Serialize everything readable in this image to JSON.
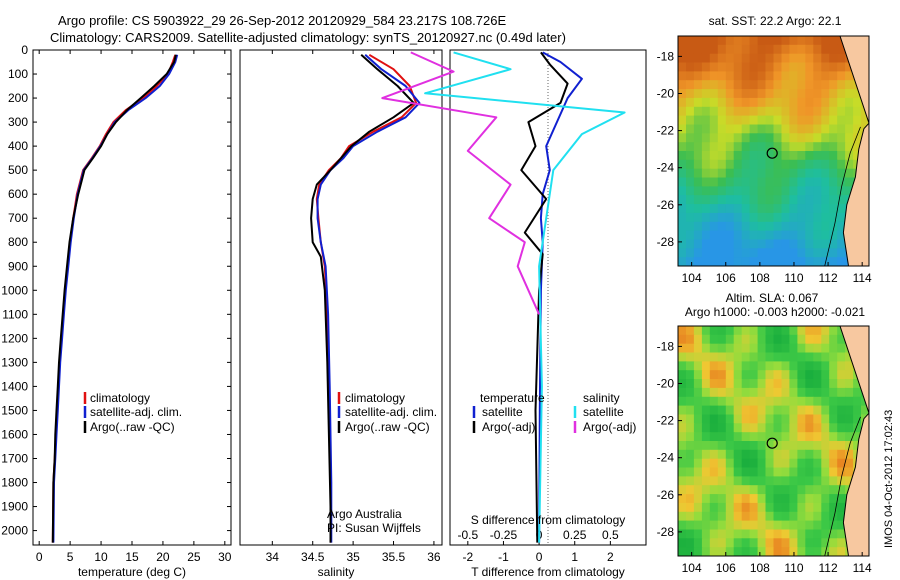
{
  "header": {
    "line1": "Argo profile: CS 5903922_29 26-Sep-2012 20120929_584 23.217S 108.726E",
    "line2": "Climatology: CARS2009. Satellite-adjusted climatology: synTS_20120927.nc (0.49d later)"
  },
  "colors": {
    "climatology": "#e01010",
    "satellite": "#1020d0",
    "argo": "#000000",
    "sal_satellite": "#20e0f0",
    "sal_argo": "#e030e0"
  },
  "chart_data": [
    {
      "type": "line",
      "id": "temperature",
      "xlabel": "temperature (deg C)",
      "xlim": [
        -1,
        31
      ],
      "xticks": [
        0,
        5,
        10,
        15,
        20,
        25,
        30
      ],
      "ylim": [
        2060,
        0
      ],
      "yticks": [
        0,
        100,
        200,
        300,
        400,
        500,
        600,
        700,
        800,
        900,
        1000,
        1100,
        1200,
        1300,
        1400,
        1500,
        1600,
        1700,
        1800,
        1900,
        2000
      ],
      "legend": [
        "climatology",
        "satellite-adj. clim.",
        "Argo(..raw -QC)"
      ],
      "series": [
        {
          "name": "climatology",
          "color_key": "climatology",
          "x": [
            22.0,
            21.6,
            20.8,
            19.0,
            16.8,
            14.0,
            12.0,
            10.8,
            9.8,
            8.5,
            7.1,
            6.6,
            6.1,
            5.8,
            5.5,
            5.0,
            4.6,
            4.2,
            3.9,
            3.6,
            3.3,
            3.1,
            2.9,
            2.7,
            2.5,
            2.3,
            2.2
          ],
          "y": [
            20,
            50,
            100,
            150,
            200,
            250,
            300,
            350,
            400,
            450,
            500,
            550,
            600,
            650,
            700,
            800,
            900,
            1000,
            1100,
            1200,
            1300,
            1400,
            1500,
            1600,
            1700,
            1800,
            2050
          ]
        },
        {
          "name": "satellite-adj. clim.",
          "color_key": "satellite",
          "x": [
            22.3,
            22.0,
            21.0,
            19.5,
            17.2,
            14.4,
            12.2,
            11.0,
            9.9,
            8.6,
            7.2,
            6.7,
            6.2,
            5.9,
            5.6,
            5.1,
            4.7,
            4.3,
            4.0,
            3.7,
            3.4,
            3.2,
            3.0,
            2.8,
            2.6,
            2.4,
            2.3
          ],
          "y": [
            20,
            50,
            100,
            150,
            200,
            250,
            300,
            350,
            400,
            450,
            500,
            550,
            600,
            650,
            700,
            800,
            900,
            1000,
            1100,
            1200,
            1300,
            1400,
            1500,
            1600,
            1700,
            1800,
            2050
          ]
        },
        {
          "name": "Argo(..raw -QC)",
          "color_key": "argo",
          "x": [
            22.1,
            21.8,
            20.6,
            18.6,
            16.4,
            14.2,
            12.4,
            11.0,
            10.0,
            8.7,
            7.3,
            6.8,
            6.3,
            5.9,
            5.5,
            4.9,
            4.5,
            4.1,
            3.8,
            3.5,
            3.2,
            3.0,
            2.8,
            2.6,
            2.5,
            2.3,
            2.2
          ],
          "y": [
            20,
            50,
            100,
            150,
            200,
            250,
            300,
            350,
            400,
            450,
            500,
            550,
            600,
            650,
            700,
            800,
            900,
            1000,
            1100,
            1200,
            1300,
            1400,
            1500,
            1600,
            1700,
            1800,
            2050
          ]
        }
      ]
    },
    {
      "type": "line",
      "id": "salinity",
      "xlabel": "salinity",
      "xlim": [
        33.6,
        36.1
      ],
      "xticks": [
        34,
        34.5,
        35,
        35.5,
        36
      ],
      "ylim": [
        2060,
        0
      ],
      "legend": [
        "climatology",
        "satellite-adj. clim.",
        "Argo(..raw -QC)"
      ],
      "annotation": [
        "Argo Australia",
        "PI: Susan Wijffels"
      ],
      "series": [
        {
          "name": "climatology",
          "color_key": "climatology",
          "x": [
            35.2,
            35.5,
            35.7,
            35.78,
            35.6,
            35.25,
            34.95,
            34.85,
            34.7,
            34.58,
            34.55,
            34.57,
            34.6,
            34.65,
            34.68,
            34.7,
            34.72,
            34.72
          ],
          "y": [
            20,
            80,
            150,
            220,
            280,
            340,
            400,
            450,
            500,
            560,
            620,
            700,
            800,
            900,
            1100,
            1400,
            1800,
            2050
          ]
        },
        {
          "name": "satellite-adj. clim.",
          "color_key": "satellite",
          "x": [
            35.15,
            35.35,
            35.65,
            35.82,
            35.65,
            35.3,
            35.0,
            34.88,
            34.72,
            34.6,
            34.56,
            34.56,
            34.6,
            34.66,
            34.69,
            34.71,
            34.73,
            34.73
          ],
          "y": [
            20,
            80,
            150,
            220,
            280,
            340,
            400,
            450,
            500,
            560,
            620,
            700,
            800,
            900,
            1100,
            1400,
            1800,
            2050
          ]
        },
        {
          "name": "Argo(..raw -QC)",
          "color_key": "argo",
          "x": [
            35.1,
            35.3,
            35.55,
            35.75,
            35.5,
            35.2,
            34.98,
            34.85,
            34.72,
            34.55,
            34.5,
            34.48,
            34.5,
            34.6,
            34.65,
            34.68,
            34.7,
            34.72,
            34.72
          ],
          "y": [
            20,
            80,
            150,
            220,
            280,
            340,
            400,
            450,
            500,
            560,
            620,
            700,
            800,
            860,
            1000,
            1300,
            1600,
            1900,
            2050
          ]
        }
      ]
    },
    {
      "type": "line",
      "id": "differences",
      "xlabel": "T difference from climatology",
      "xlabel_top": "S difference from climatology",
      "xlim": [
        -2.5,
        3
      ],
      "xticks": [
        -2,
        -1,
        0,
        1,
        2
      ],
      "xticks_top": [
        -0.5,
        -0.25,
        0,
        0.25,
        0.5
      ],
      "xticks_top_labels": [
        "-0.5",
        "-0.25",
        "0",
        "0.25",
        "0.5"
      ],
      "ylim": [
        2060,
        0
      ],
      "legend_temperature": {
        "title": "temperature",
        "items": [
          "satellite",
          "Argo(-adj)"
        ]
      },
      "legend_salinity": {
        "title": "salinity",
        "items": [
          "satellite",
          "Argo(-adj)"
        ]
      },
      "series": [
        {
          "name": "T satellite",
          "color_key": "satellite",
          "x": [
            0.1,
            0.6,
            1.2,
            0.8,
            0.5,
            0.2,
            0.3,
            0.1,
            0.05,
            0.1,
            0.05,
            0.02,
            0.0
          ],
          "y": [
            10,
            50,
            120,
            200,
            300,
            400,
            500,
            600,
            700,
            800,
            1000,
            1500,
            2050
          ]
        },
        {
          "name": "T Argo(-adj)",
          "color_key": "argo",
          "x": [
            0.05,
            0.3,
            0.8,
            0.6,
            -0.3,
            -0.1,
            -0.5,
            0.2,
            -0.4,
            0.1,
            0.0,
            -0.1,
            -0.05
          ],
          "y": [
            10,
            60,
            140,
            220,
            300,
            400,
            500,
            620,
            760,
            850,
            1000,
            1500,
            2050
          ]
        },
        {
          "name": "S satellite",
          "color_key": "sal_satellite",
          "x": [
            -0.6,
            -0.2,
            -0.8,
            0.6,
            0.3,
            0.1,
            0.05,
            0.0,
            0.02,
            0.0
          ],
          "y": [
            10,
            80,
            180,
            260,
            350,
            500,
            700,
            900,
            1400,
            2050
          ]
        },
        {
          "name": "S Argo(-adj)",
          "color_key": "sal_argo",
          "x": [
            -0.9,
            -0.6,
            -1.1,
            -0.3,
            -0.5,
            -0.2,
            -0.35,
            -0.1,
            -0.15,
            0.0
          ],
          "y": [
            10,
            90,
            200,
            280,
            420,
            560,
            700,
            800,
            900,
            1100
          ]
        }
      ]
    },
    {
      "type": "heatmap",
      "id": "sst_map",
      "title": "sat. SST: 22.2 Argo: 22.1",
      "xticks": [
        104,
        106,
        108,
        110,
        112,
        114
      ],
      "yticks": [
        -18,
        -20,
        -22,
        -24,
        -26,
        -28
      ],
      "xlim": [
        103.2,
        114.4
      ],
      "ylim": [
        -29.3,
        -16.9
      ],
      "marker": {
        "lon": 108.726,
        "lat": -23.217
      }
    },
    {
      "type": "heatmap",
      "id": "sla_map",
      "title": "Altim. SLA: 0.067",
      "subtitle": "Argo h1000: -0.003 h2000: -0.021",
      "xticks": [
        104,
        106,
        108,
        110,
        112,
        114
      ],
      "yticks": [
        -18,
        -20,
        -22,
        -24,
        -26,
        -28
      ],
      "xlim": [
        103.2,
        114.4
      ],
      "ylim": [
        -29.3,
        -16.9
      ],
      "marker": {
        "lon": 108.726,
        "lat": -23.217
      }
    }
  ],
  "footer_stamp": "IMOS 04-Oct-2012 17:02:43"
}
